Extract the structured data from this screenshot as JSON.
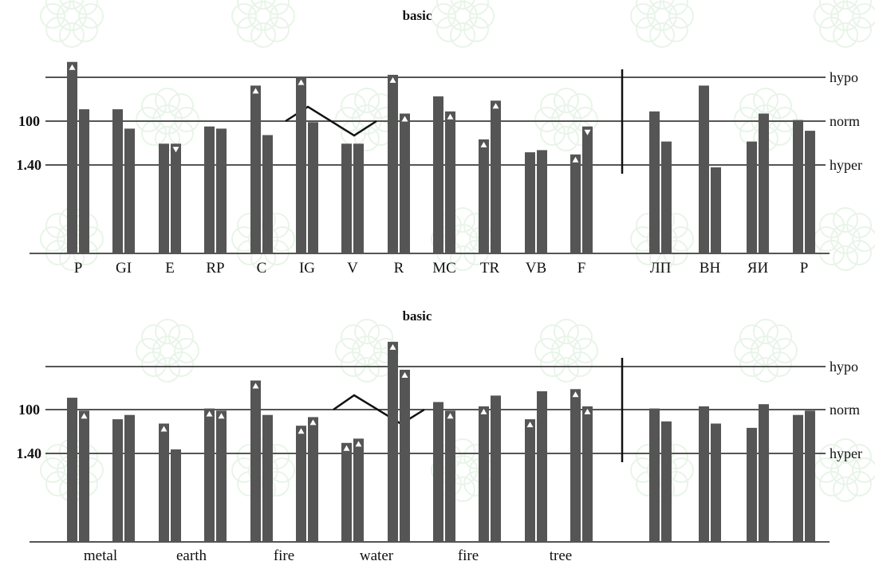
{
  "chart_data": [
    {
      "type": "bar",
      "title": "basic",
      "y_tick_labels": [
        "100",
        "1.40"
      ],
      "ref_lines": [
        "hypo",
        "norm",
        "hyper"
      ],
      "groups": [
        {
          "label": "P",
          "bars": [
            {
              "value": 89,
              "marker": "up"
            },
            {
              "value": 67
            }
          ]
        },
        {
          "label": "GI",
          "bars": [
            {
              "value": 67
            },
            {
              "value": 58
            }
          ]
        },
        {
          "label": "E",
          "bars": [
            {
              "value": 51
            },
            {
              "value": 51,
              "marker": "down"
            }
          ]
        },
        {
          "label": "RP",
          "bars": [
            {
              "value": 59
            },
            {
              "value": 58
            }
          ]
        },
        {
          "label": "C",
          "bars": [
            {
              "value": 78,
              "marker": "up"
            },
            {
              "value": 55
            }
          ]
        },
        {
          "label": "IG",
          "bars": [
            {
              "value": 82,
              "marker": "up"
            },
            {
              "value": 61
            }
          ]
        },
        {
          "label": "V",
          "bars": [
            {
              "value": 51
            },
            {
              "value": 51
            }
          ]
        },
        {
          "label": "R",
          "bars": [
            {
              "value": 83,
              "marker": "up"
            },
            {
              "value": 65,
              "marker": "up"
            }
          ]
        },
        {
          "label": "MC",
          "bars": [
            {
              "value": 73
            },
            {
              "value": 66,
              "marker": "up"
            }
          ]
        },
        {
          "label": "TR",
          "bars": [
            {
              "value": 53,
              "marker": "up"
            },
            {
              "value": 71,
              "marker": "up"
            }
          ]
        },
        {
          "label": "VB",
          "bars": [
            {
              "value": 47
            },
            {
              "value": 48
            }
          ]
        },
        {
          "label": "F",
          "bars": [
            {
              "value": 46,
              "marker": "up"
            },
            {
              "value": 59,
              "marker": "down"
            }
          ]
        },
        {
          "label": "ЛП",
          "bars": [
            {
              "value": 66
            },
            {
              "value": 52
            }
          ]
        },
        {
          "label": "ВН",
          "bars": [
            {
              "value": 78
            },
            {
              "value": 40
            }
          ]
        },
        {
          "label": "ЯИ",
          "bars": [
            {
              "value": 52
            },
            {
              "value": 65
            }
          ]
        },
        {
          "label": "Р",
          "bars": [
            {
              "value": 62
            },
            {
              "value": 57
            }
          ]
        }
      ]
    },
    {
      "type": "bar",
      "title": "basic",
      "y_tick_labels": [
        "100",
        "1.40"
      ],
      "ref_lines": [
        "hypo",
        "norm",
        "hyper"
      ],
      "element_labels": [
        "metal",
        "earth",
        "fire",
        "water",
        "fire",
        "tree"
      ],
      "groups": [
        {
          "bars": [
            {
              "value": 67
            },
            {
              "value": 61,
              "marker": "up"
            }
          ]
        },
        {
          "bars": [
            {
              "value": 57
            },
            {
              "value": 59
            }
          ]
        },
        {
          "bars": [
            {
              "value": 55,
              "marker": "up"
            },
            {
              "value": 43
            }
          ]
        },
        {
          "bars": [
            {
              "value": 62,
              "marker": "up"
            },
            {
              "value": 61,
              "marker": "up"
            }
          ]
        },
        {
          "bars": [
            {
              "value": 75,
              "marker": "up"
            },
            {
              "value": 59
            }
          ]
        },
        {
          "bars": [
            {
              "value": 54,
              "marker": "up"
            },
            {
              "value": 58,
              "marker": "up"
            }
          ]
        },
        {
          "bars": [
            {
              "value": 46,
              "marker": "up"
            },
            {
              "value": 48,
              "marker": "up"
            }
          ]
        },
        {
          "bars": [
            {
              "value": 93,
              "marker": "up"
            },
            {
              "value": 80,
              "marker": "up"
            }
          ]
        },
        {
          "bars": [
            {
              "value": 65
            },
            {
              "value": 61,
              "marker": "up"
            }
          ]
        },
        {
          "bars": [
            {
              "value": 63,
              "marker": "up"
            },
            {
              "value": 68
            }
          ]
        },
        {
          "bars": [
            {
              "value": 57,
              "marker": "up"
            },
            {
              "value": 70
            }
          ]
        },
        {
          "bars": [
            {
              "value": 71,
              "marker": "up"
            },
            {
              "value": 63,
              "marker": "up"
            }
          ]
        },
        {
          "bars": [
            {
              "value": 62
            },
            {
              "value": 56
            }
          ]
        },
        {
          "bars": [
            {
              "value": 63
            },
            {
              "value": 55
            }
          ]
        },
        {
          "bars": [
            {
              "value": 53
            },
            {
              "value": 64
            }
          ]
        },
        {
          "bars": [
            {
              "value": 59
            },
            {
              "value": 61
            }
          ]
        }
      ]
    }
  ]
}
